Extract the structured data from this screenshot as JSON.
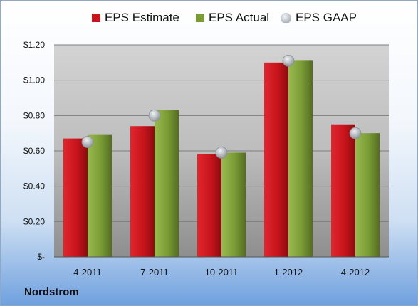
{
  "chart_data": {
    "type": "bar",
    "categories": [
      "4-2011",
      "7-2011",
      "10-2011",
      "1-2012",
      "4-2012"
    ],
    "series": [
      {
        "name": "EPS Estimate",
        "type": "bar",
        "values": [
          0.67,
          0.74,
          0.58,
          1.1,
          0.75
        ],
        "color": "#c8141c"
      },
      {
        "name": "EPS Actual",
        "type": "bar",
        "values": [
          0.69,
          0.83,
          0.59,
          1.11,
          0.7
        ],
        "color": "#7a9b35"
      },
      {
        "name": "EPS GAAP",
        "type": "scatter",
        "values": [
          0.65,
          0.8,
          0.59,
          1.11,
          0.7
        ],
        "color": "#b0b6bd"
      }
    ],
    "yticks": [
      "$1.20",
      "$1.00",
      "$0.80",
      "$0.60",
      "$0.40",
      "$0.20",
      "$-"
    ],
    "ylim": [
      0,
      1.2
    ],
    "grid": true,
    "legend_position": "top",
    "plot_background": "gray gradient"
  },
  "footer": {
    "brand": "Nordstrom"
  }
}
